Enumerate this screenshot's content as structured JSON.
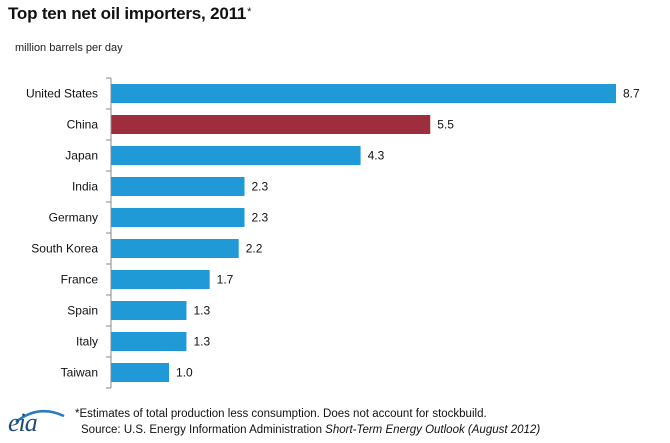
{
  "header": {
    "title": "Top ten net oil importers, 2011",
    "title_mark": "*",
    "unit_label": "million barrels per day"
  },
  "chart_data": {
    "type": "bar",
    "orientation": "horizontal",
    "title": "Top ten net oil importers, 2011",
    "unit": "million barrels per day",
    "categories": [
      "United States",
      "China",
      "Japan",
      "India",
      "Germany",
      "South Korea",
      "France",
      "Spain",
      "Italy",
      "Taiwan"
    ],
    "values": [
      8.7,
      5.5,
      4.3,
      2.3,
      2.3,
      2.2,
      1.7,
      1.3,
      1.3,
      1.0
    ],
    "value_labels": [
      "8.7",
      "5.5",
      "4.3",
      "2.3",
      "2.3",
      "2.2",
      "1.7",
      "1.3",
      "1.3",
      "1.0"
    ],
    "colors": {
      "default": "#1f9ad6",
      "highlight": "#9e2e3d",
      "axis": "#888888"
    },
    "highlight_category": "China",
    "xlim": [
      0,
      8.7
    ],
    "grid": false,
    "legend": "none"
  },
  "footer": {
    "logo_text": "eia",
    "note": "*Estimates of total production less consumption. Does not account for stockbuild.",
    "source_prefix": "Source: U.S. Energy Information Administration ",
    "source_publication": "Short-Term  Energy  Outlook (August 2012)"
  }
}
